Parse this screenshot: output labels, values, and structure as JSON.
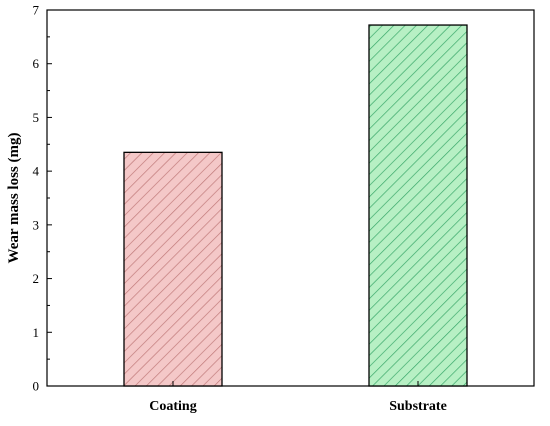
{
  "chart_data": {
    "type": "bar",
    "categories": [
      "Coating",
      "Substrate"
    ],
    "values": [
      4.35,
      6.72
    ],
    "ylabel": "Wear mass loss (mg)",
    "xlabel": "",
    "ylim": [
      0,
      7
    ],
    "yticks": [
      0,
      1,
      2,
      3,
      4,
      5,
      6,
      7
    ],
    "grid": false,
    "bar_colors": [
      "#f4c8c8",
      "#b7f0c4"
    ],
    "hatch_colors": [
      "#c07a7a",
      "#3aa86a"
    ],
    "bar_pattern": "diagonal-hatch"
  }
}
